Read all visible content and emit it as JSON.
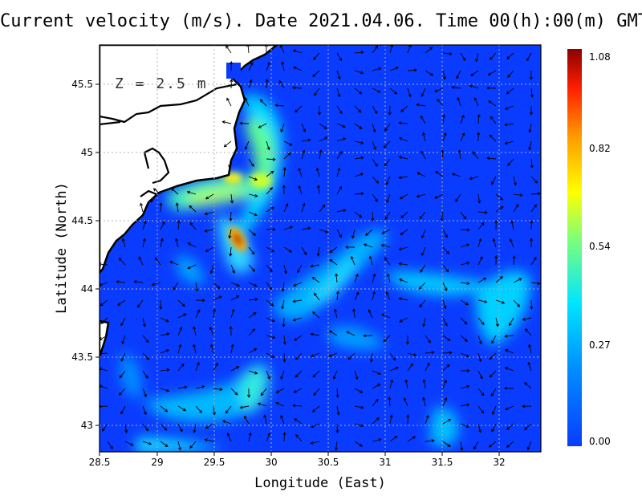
{
  "title": "Current velocity (m/s). Date 2021.04.06. Time 00(h):00(m) GMT",
  "depth_label": "Z = 2.5 m",
  "axes": {
    "xlabel": "Longitude (East)",
    "ylabel": "Latitude (North)",
    "xticks": [
      "28.5",
      "29",
      "29.5",
      "30",
      "30.5",
      "31",
      "31.5",
      "32"
    ],
    "yticks": [
      "45.5",
      "45",
      "44.5",
      "44",
      "43.5",
      "43"
    ]
  },
  "colorbar": {
    "ticks": [
      "1.08",
      "0.82",
      "0.54",
      "0.27",
      "0.00"
    ],
    "colors": [
      "#0a3cff",
      "#0090ff",
      "#00e5ff",
      "#7dff7a",
      "#ffff00",
      "#ff9a00",
      "#ff2000",
      "#8b0000"
    ]
  },
  "colors": {
    "land": "#ffffff",
    "coastline": "#000000",
    "grid": "#b0b0b0",
    "arrow": "#000000",
    "background_sea": "#0a3cff"
  }
}
